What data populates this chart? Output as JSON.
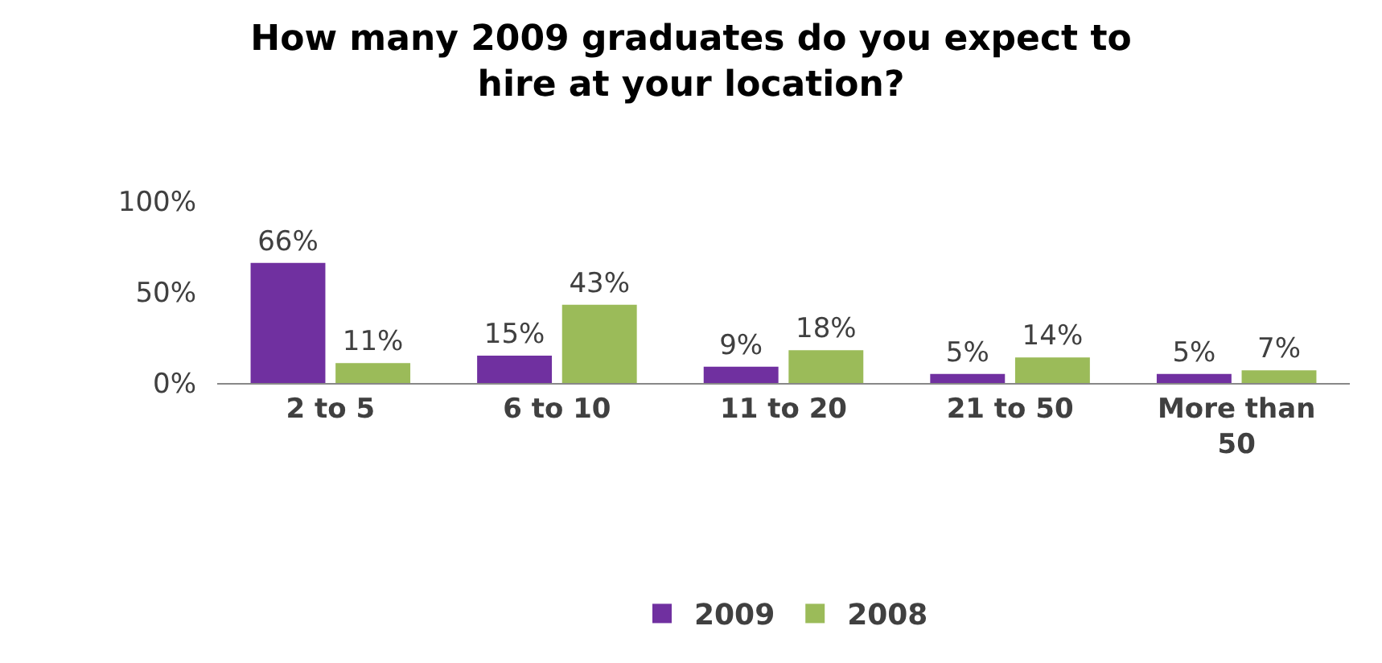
{
  "chart_data": {
    "type": "bar",
    "title": "How many 2009 graduates do you expect to hire at your location?",
    "categories": [
      "2 to 5",
      "6 to 10",
      "11 to 20",
      "21 to 50",
      "More than 50"
    ],
    "series": [
      {
        "name": "2009",
        "color": "#7030a0",
        "values": [
          66,
          15,
          9,
          5,
          5
        ],
        "value_labels": [
          "66%",
          "15%",
          "9%",
          "5%",
          "5%"
        ]
      },
      {
        "name": "2008",
        "color": "#9bbb59",
        "values": [
          11,
          43,
          18,
          14,
          7
        ],
        "value_labels": [
          "11%",
          "43%",
          "18%",
          "14%",
          "7%"
        ]
      }
    ],
    "ylim": [
      0,
      100
    ],
    "yticks": [
      {
        "value": 0,
        "label": "0%"
      },
      {
        "value": 50,
        "label": "50%"
      },
      {
        "value": 100,
        "label": "100%"
      }
    ],
    "legend": "bottom"
  }
}
